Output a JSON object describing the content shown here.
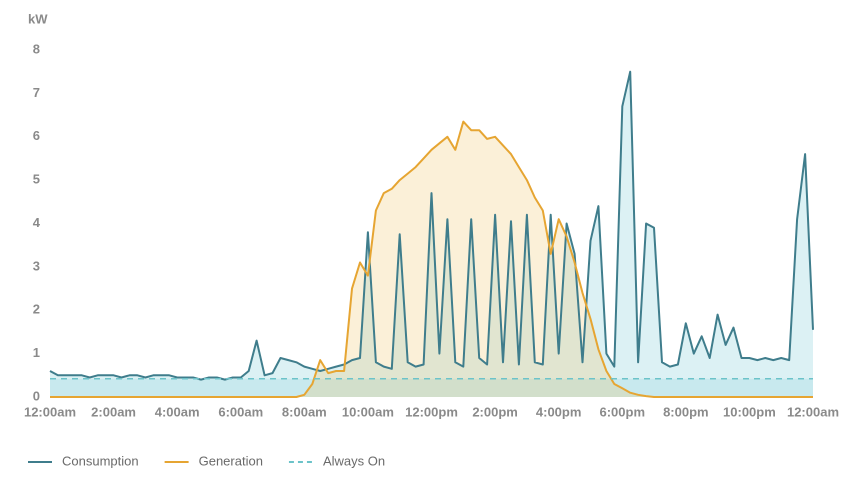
{
  "chart_data": {
    "type": "line",
    "y_label": "kW",
    "x": [
      0,
      0.25,
      0.5,
      0.75,
      1,
      1.25,
      1.5,
      1.75,
      2,
      2.25,
      2.5,
      2.75,
      3,
      3.25,
      3.5,
      3.75,
      4,
      4.25,
      4.5,
      4.75,
      5,
      5.25,
      5.5,
      5.75,
      6,
      6.25,
      6.5,
      6.75,
      7,
      7.25,
      7.5,
      7.75,
      8,
      8.25,
      8.5,
      8.75,
      9,
      9.25,
      9.5,
      9.75,
      10,
      10.25,
      10.5,
      10.75,
      11,
      11.25,
      11.5,
      11.75,
      12,
      12.25,
      12.5,
      12.75,
      13,
      13.25,
      13.5,
      13.75,
      14,
      14.25,
      14.5,
      14.75,
      15,
      15.25,
      15.5,
      15.75,
      16,
      16.25,
      16.5,
      16.75,
      17,
      17.25,
      17.5,
      17.75,
      18,
      18.25,
      18.5,
      18.75,
      19,
      19.25,
      19.5,
      19.75,
      20,
      20.25,
      20.5,
      20.75,
      21,
      21.25,
      21.5,
      21.75,
      22,
      22.25,
      22.5,
      22.75,
      23,
      23.25,
      23.5,
      23.75,
      24
    ],
    "series": [
      {
        "name": "Consumption",
        "color": "#3f7d8c",
        "fill": "rgba(140,210,220,0.3)",
        "values": [
          0.6,
          0.5,
          0.5,
          0.5,
          0.5,
          0.45,
          0.5,
          0.5,
          0.5,
          0.45,
          0.5,
          0.5,
          0.45,
          0.5,
          0.5,
          0.5,
          0.45,
          0.45,
          0.45,
          0.4,
          0.45,
          0.45,
          0.4,
          0.45,
          0.45,
          0.6,
          1.3,
          0.5,
          0.55,
          0.9,
          0.85,
          0.8,
          0.7,
          0.65,
          0.6,
          0.65,
          0.7,
          0.75,
          0.85,
          0.9,
          3.8,
          0.8,
          0.7,
          0.65,
          3.75,
          0.8,
          0.7,
          0.75,
          4.7,
          1.0,
          4.1,
          0.8,
          0.7,
          4.1,
          0.9,
          0.75,
          4.2,
          0.8,
          4.05,
          0.75,
          4.2,
          0.8,
          0.75,
          4.2,
          1.0,
          4.0,
          3.3,
          0.8,
          3.6,
          4.4,
          1.0,
          0.7,
          6.7,
          7.5,
          0.8,
          4.0,
          3.9,
          0.8,
          0.7,
          0.75,
          1.7,
          1.0,
          1.4,
          0.9,
          1.9,
          1.2,
          1.6,
          0.9,
          0.9,
          0.85,
          0.9,
          0.85,
          0.9,
          0.85,
          4.1,
          5.6,
          1.55
        ]
      },
      {
        "name": "Generation",
        "color": "#e6a532",
        "fill": "rgba(240,195,100,0.25)",
        "values": [
          0,
          0,
          0,
          0,
          0,
          0,
          0,
          0,
          0,
          0,
          0,
          0,
          0,
          0,
          0,
          0,
          0,
          0,
          0,
          0,
          0,
          0,
          0,
          0,
          0,
          0,
          0,
          0,
          0,
          0,
          0,
          0,
          0.05,
          0.3,
          0.85,
          0.55,
          0.6,
          0.6,
          2.5,
          3.1,
          2.8,
          4.3,
          4.7,
          4.8,
          5.0,
          5.15,
          5.3,
          5.5,
          5.7,
          5.85,
          6.0,
          5.7,
          6.35,
          6.15,
          6.15,
          5.95,
          6.0,
          5.8,
          5.6,
          5.3,
          5.0,
          4.6,
          4.3,
          3.3,
          4.1,
          3.7,
          3.1,
          2.4,
          1.8,
          1.1,
          0.6,
          0.3,
          0.2,
          0.1,
          0.05,
          0.02,
          0,
          0,
          0,
          0,
          0,
          0,
          0,
          0,
          0,
          0,
          0,
          0,
          0,
          0,
          0,
          0,
          0,
          0,
          0,
          0,
          0
        ]
      },
      {
        "name": "Always On",
        "color": "#6cc3c9",
        "line_style": "dashed",
        "value": 0.42
      }
    ],
    "xlim": [
      0,
      24
    ],
    "xticks": [
      {
        "value": 0,
        "label": "12:00am"
      },
      {
        "value": 2,
        "label": "2:00am"
      },
      {
        "value": 4,
        "label": "4:00am"
      },
      {
        "value": 6,
        "label": "6:00am"
      },
      {
        "value": 8,
        "label": "8:00am"
      },
      {
        "value": 10,
        "label": "10:00am"
      },
      {
        "value": 12,
        "label": "12:00pm"
      },
      {
        "value": 14,
        "label": "2:00pm"
      },
      {
        "value": 16,
        "label": "4:00pm"
      },
      {
        "value": 18,
        "label": "6:00pm"
      },
      {
        "value": 20,
        "label": "8:00pm"
      },
      {
        "value": 22,
        "label": "10:00pm"
      },
      {
        "value": 24,
        "label": "12:00am"
      }
    ],
    "ylim": [
      0,
      8
    ],
    "yticks": [
      0,
      1,
      2,
      3,
      4,
      5,
      6,
      7,
      8
    ],
    "grid": false
  }
}
